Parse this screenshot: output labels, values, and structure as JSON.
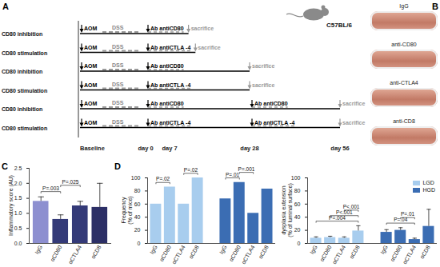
{
  "panels": [
    "A",
    "B",
    "C",
    "D"
  ],
  "diagram": {
    "strain": "C57BL/6",
    "start": "AOM",
    "dss": "DSS",
    "end": "sacrifice",
    "timepoints": [
      "Baseline",
      "day 0",
      "day 7",
      "day 28",
      "day 56"
    ],
    "rows": [
      {
        "label": "CD80 inhibition",
        "antibodies": [
          "Ab antiCD80"
        ],
        "end": "day 7"
      },
      {
        "label": "CD80 stimulation",
        "antibodies": [
          "Ab antiCTLA -4"
        ],
        "end": "day 7"
      },
      {
        "label": "CD80 inhibition",
        "antibodies": [
          "Ab antiCD80"
        ],
        "end": "day 28"
      },
      {
        "label": "CD80 stimulation",
        "antibodies": [
          "Ab antiCTLA -4"
        ],
        "end": "day 28"
      },
      {
        "label": "CD80 inhibition",
        "antibodies": [
          "Ab antiCD80",
          "Ab antiCD80"
        ],
        "end": "day 56"
      },
      {
        "label": "CD80 stimulation",
        "antibodies": [
          "Ab antiCTLA -4",
          "Ab antiCTLA -4"
        ],
        "end": "day 56"
      }
    ]
  },
  "photos": {
    "labels": [
      "IgG",
      "anti-CD80",
      "anti-CTLA4",
      "anti-CD8"
    ]
  },
  "chart_data": [
    {
      "type": "bar",
      "categories": [
        "IgG",
        "αCD80",
        "αCTLA4",
        "αCD8"
      ],
      "values": [
        1.4,
        0.8,
        1.25,
        1.2
      ],
      "errors": [
        0.15,
        0.15,
        0.15,
        0.8
      ],
      "colors": [
        "#8d8fd0",
        "#343a78",
        "#343a78",
        "#2c2f66"
      ],
      "ylabel": [
        "Inflammatory score (AU)"
      ],
      "ylim": [
        0,
        2.5
      ],
      "yticks": [
        {
          "value": 0,
          "label": "0.0"
        },
        0.5,
        {
          "value": 1,
          "label": "1.0"
        },
        1.5,
        {
          "value": 2,
          "label": "2.0"
        },
        2.5
      ],
      "annotations": [
        {
          "text": "P=.003",
          "from": 0,
          "to": 1
        },
        {
          "text": "P=.025",
          "from": 1,
          "to": 2
        }
      ]
    },
    {
      "type": "bar",
      "categories": [
        "IgG",
        "αCD80",
        "αCTLA4",
        "αCD8"
      ],
      "series": [
        {
          "name": "LGD",
          "color": "#a8cdee",
          "values": [
            60,
            86,
            60,
            100
          ]
        },
        {
          "name": "HGD",
          "color": "#3b6db3",
          "values": [
            68,
            93,
            46,
            83
          ]
        }
      ],
      "ylabel": [
        "Frequency",
        "(% of mice)"
      ],
      "ylim": [
        0,
        100
      ],
      "yticks": [
        0,
        20,
        40,
        60,
        80,
        100
      ],
      "annotations": [
        {
          "text": "P=.02",
          "series": "LGD",
          "from": 0,
          "to": 1
        },
        {
          "text": "P=.02",
          "series": "LGD",
          "from": 2,
          "to": 3
        },
        {
          "text": "P=.01",
          "series": "HGD",
          "from": 0,
          "to": 1
        },
        {
          "text": "P=.001",
          "series": "HGD",
          "from": 1,
          "to": 2
        }
      ]
    },
    {
      "type": "bar",
      "categories": [
        "IgG",
        "αCD80",
        "αCTLA4",
        "αCD8"
      ],
      "series": [
        {
          "name": "LGD",
          "color": "#a8cdee",
          "values": [
            8,
            9,
            8,
            19
          ],
          "errors": [
            2,
            2,
            2,
            8
          ]
        },
        {
          "name": "HGD",
          "color": "#3b6db3",
          "values": [
            17,
            20,
            6,
            26
          ],
          "errors": [
            4,
            4,
            2,
            26
          ]
        }
      ],
      "ylabel": [
        "dysplasia extension",
        "(% of luminal surface)"
      ],
      "ylim": [
        0,
        100
      ],
      "yticks": [
        0,
        20,
        40,
        60,
        80,
        100
      ],
      "legend": "top-right",
      "annotations": [
        {
          "text": "P=.004",
          "series": "LGD",
          "from": 0,
          "to": 3
        },
        {
          "text": "P<.001",
          "series": "LGD",
          "from": 1,
          "to": 3
        },
        {
          "text": "P<.001",
          "series": "LGD",
          "from": 2,
          "to": 3
        },
        {
          "text": "P=.04",
          "series": "HGD",
          "from": 0,
          "to": 2
        },
        {
          "text": "P=.01",
          "series": "HGD",
          "from": 1,
          "to": 2
        }
      ]
    }
  ]
}
